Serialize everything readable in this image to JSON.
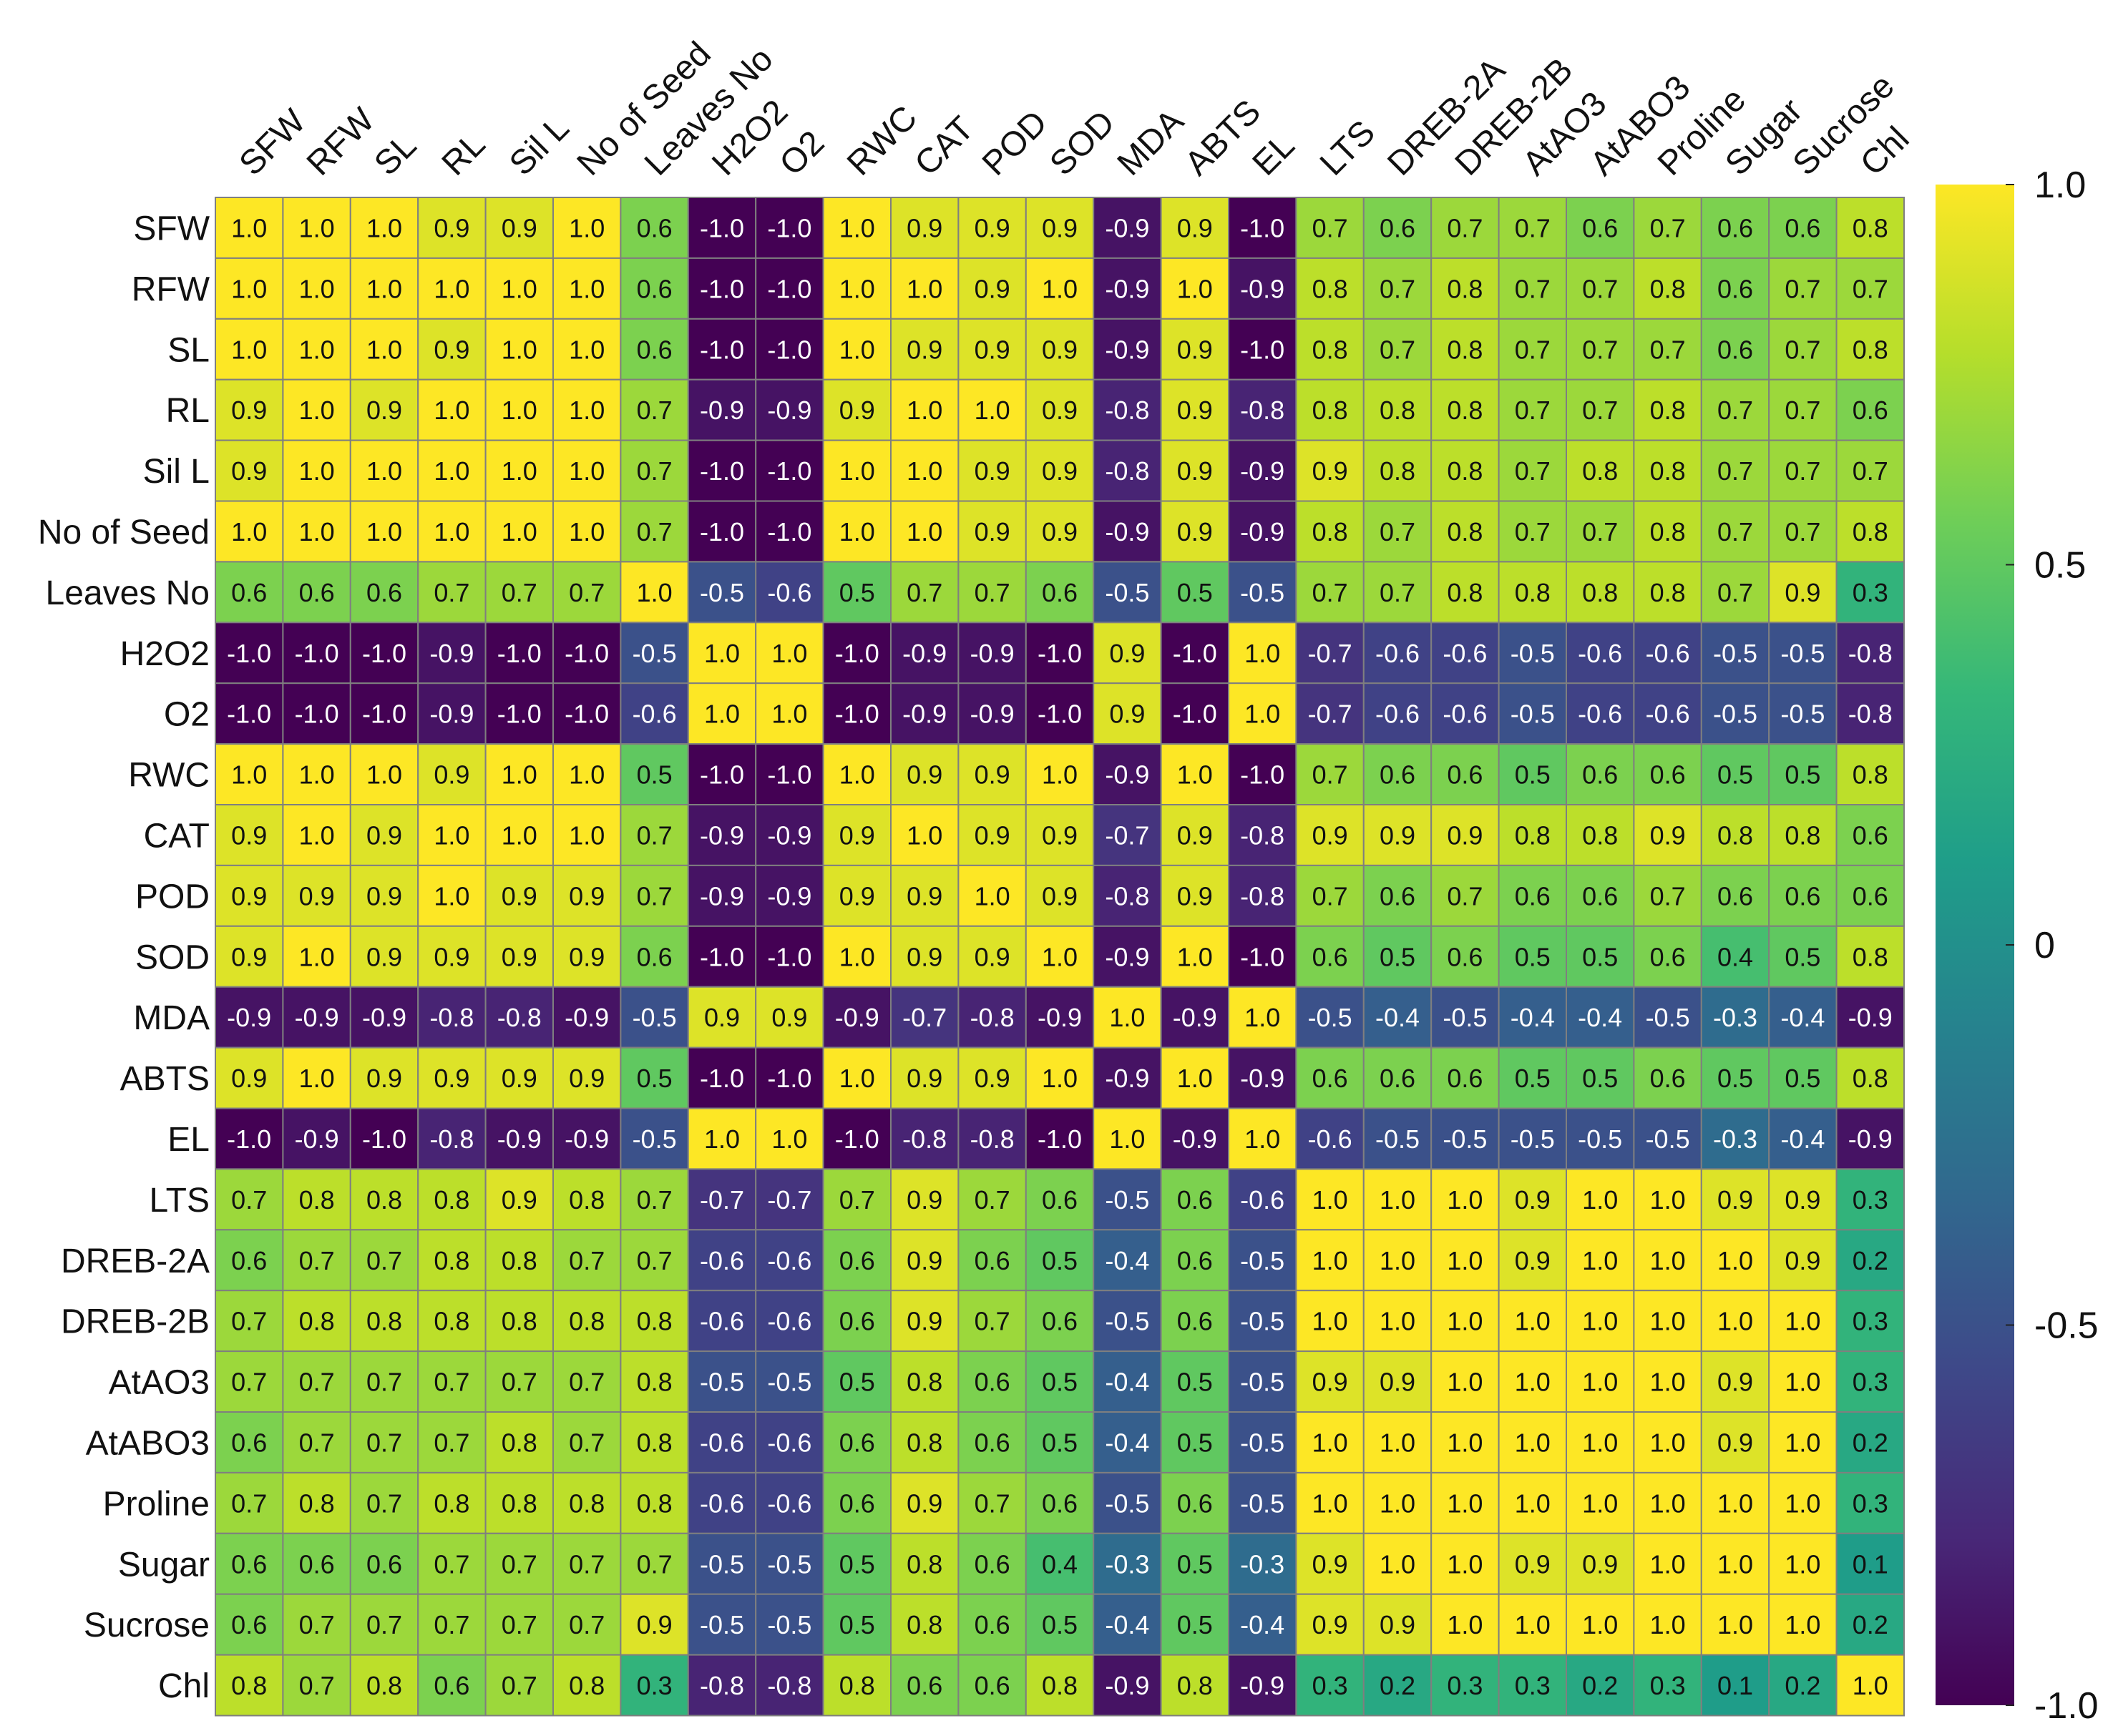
{
  "chart_data": {
    "type": "heatmap",
    "title": "",
    "labels": [
      "SFW",
      "RFW",
      "SL",
      "RL",
      "Sil L",
      "No of Seed",
      "Leaves No",
      "H2O2",
      "O2",
      "RWC",
      "CAT",
      "POD",
      "SOD",
      "MDA",
      "ABTS",
      "EL",
      "LTS",
      "DREB-2A",
      "DREB-2B",
      "AtAO3",
      "AtABO3",
      "Proline",
      "Sugar",
      "Sucrose",
      "Chl"
    ],
    "matrix": [
      [
        1.0,
        1.0,
        1.0,
        0.9,
        0.9,
        1.0,
        0.6,
        -1.0,
        -1.0,
        1.0,
        0.9,
        0.9,
        0.9,
        -0.9,
        0.9,
        -1.0,
        0.7,
        0.6,
        0.7,
        0.7,
        0.6,
        0.7,
        0.6,
        0.6,
        0.8
      ],
      [
        1.0,
        1.0,
        1.0,
        1.0,
        1.0,
        1.0,
        0.6,
        -1.0,
        -1.0,
        1.0,
        1.0,
        0.9,
        1.0,
        -0.9,
        1.0,
        -0.9,
        0.8,
        0.7,
        0.8,
        0.7,
        0.7,
        0.8,
        0.6,
        0.7,
        0.7
      ],
      [
        1.0,
        1.0,
        1.0,
        0.9,
        1.0,
        1.0,
        0.6,
        -1.0,
        -1.0,
        1.0,
        0.9,
        0.9,
        0.9,
        -0.9,
        0.9,
        -1.0,
        0.8,
        0.7,
        0.8,
        0.7,
        0.7,
        0.7,
        0.6,
        0.7,
        0.8
      ],
      [
        0.9,
        1.0,
        0.9,
        1.0,
        1.0,
        1.0,
        0.7,
        -0.9,
        -0.9,
        0.9,
        1.0,
        1.0,
        0.9,
        -0.8,
        0.9,
        -0.8,
        0.8,
        0.8,
        0.8,
        0.7,
        0.7,
        0.8,
        0.7,
        0.7,
        0.6
      ],
      [
        0.9,
        1.0,
        1.0,
        1.0,
        1.0,
        1.0,
        0.7,
        -1.0,
        -1.0,
        1.0,
        1.0,
        0.9,
        0.9,
        -0.8,
        0.9,
        -0.9,
        0.9,
        0.8,
        0.8,
        0.7,
        0.8,
        0.8,
        0.7,
        0.7,
        0.7
      ],
      [
        1.0,
        1.0,
        1.0,
        1.0,
        1.0,
        1.0,
        0.7,
        -1.0,
        -1.0,
        1.0,
        1.0,
        0.9,
        0.9,
        -0.9,
        0.9,
        -0.9,
        0.8,
        0.7,
        0.8,
        0.7,
        0.7,
        0.8,
        0.7,
        0.7,
        0.8
      ],
      [
        0.6,
        0.6,
        0.6,
        0.7,
        0.7,
        0.7,
        1.0,
        -0.5,
        -0.6,
        0.5,
        0.7,
        0.7,
        0.6,
        -0.5,
        0.5,
        -0.5,
        0.7,
        0.7,
        0.8,
        0.8,
        0.8,
        0.8,
        0.7,
        0.9,
        0.3
      ],
      [
        -1.0,
        -1.0,
        -1.0,
        -0.9,
        -1.0,
        -1.0,
        -0.5,
        1.0,
        1.0,
        -1.0,
        -0.9,
        -0.9,
        -1.0,
        0.9,
        -1.0,
        1.0,
        -0.7,
        -0.6,
        -0.6,
        -0.5,
        -0.6,
        -0.6,
        -0.5,
        -0.5,
        -0.8
      ],
      [
        -1.0,
        -1.0,
        -1.0,
        -0.9,
        -1.0,
        -1.0,
        -0.6,
        1.0,
        1.0,
        -1.0,
        -0.9,
        -0.9,
        -1.0,
        0.9,
        -1.0,
        1.0,
        -0.7,
        -0.6,
        -0.6,
        -0.5,
        -0.6,
        -0.6,
        -0.5,
        -0.5,
        -0.8
      ],
      [
        1.0,
        1.0,
        1.0,
        0.9,
        1.0,
        1.0,
        0.5,
        -1.0,
        -1.0,
        1.0,
        0.9,
        0.9,
        1.0,
        -0.9,
        1.0,
        -1.0,
        0.7,
        0.6,
        0.6,
        0.5,
        0.6,
        0.6,
        0.5,
        0.5,
        0.8
      ],
      [
        0.9,
        1.0,
        0.9,
        1.0,
        1.0,
        1.0,
        0.7,
        -0.9,
        -0.9,
        0.9,
        1.0,
        0.9,
        0.9,
        -0.7,
        0.9,
        -0.8,
        0.9,
        0.9,
        0.9,
        0.8,
        0.8,
        0.9,
        0.8,
        0.8,
        0.6
      ],
      [
        0.9,
        0.9,
        0.9,
        1.0,
        0.9,
        0.9,
        0.7,
        -0.9,
        -0.9,
        0.9,
        0.9,
        1.0,
        0.9,
        -0.8,
        0.9,
        -0.8,
        0.7,
        0.6,
        0.7,
        0.6,
        0.6,
        0.7,
        0.6,
        0.6,
        0.6
      ],
      [
        0.9,
        1.0,
        0.9,
        0.9,
        0.9,
        0.9,
        0.6,
        -1.0,
        -1.0,
        1.0,
        0.9,
        0.9,
        1.0,
        -0.9,
        1.0,
        -1.0,
        0.6,
        0.5,
        0.6,
        0.5,
        0.5,
        0.6,
        0.4,
        0.5,
        0.8
      ],
      [
        -0.9,
        -0.9,
        -0.9,
        -0.8,
        -0.8,
        -0.9,
        -0.5,
        0.9,
        0.9,
        -0.9,
        -0.7,
        -0.8,
        -0.9,
        1.0,
        -0.9,
        1.0,
        -0.5,
        -0.4,
        -0.5,
        -0.4,
        -0.4,
        -0.5,
        -0.3,
        -0.4,
        -0.9
      ],
      [
        0.9,
        1.0,
        0.9,
        0.9,
        0.9,
        0.9,
        0.5,
        -1.0,
        -1.0,
        1.0,
        0.9,
        0.9,
        1.0,
        -0.9,
        1.0,
        -0.9,
        0.6,
        0.6,
        0.6,
        0.5,
        0.5,
        0.6,
        0.5,
        0.5,
        0.8
      ],
      [
        -1.0,
        -0.9,
        -1.0,
        -0.8,
        -0.9,
        -0.9,
        -0.5,
        1.0,
        1.0,
        -1.0,
        -0.8,
        -0.8,
        -1.0,
        1.0,
        -0.9,
        1.0,
        -0.6,
        -0.5,
        -0.5,
        -0.5,
        -0.5,
        -0.5,
        -0.3,
        -0.4,
        -0.9
      ],
      [
        0.7,
        0.8,
        0.8,
        0.8,
        0.9,
        0.8,
        0.7,
        -0.7,
        -0.7,
        0.7,
        0.9,
        0.7,
        0.6,
        -0.5,
        0.6,
        -0.6,
        1.0,
        1.0,
        1.0,
        0.9,
        1.0,
        1.0,
        0.9,
        0.9,
        0.3
      ],
      [
        0.6,
        0.7,
        0.7,
        0.8,
        0.8,
        0.7,
        0.7,
        -0.6,
        -0.6,
        0.6,
        0.9,
        0.6,
        0.5,
        -0.4,
        0.6,
        -0.5,
        1.0,
        1.0,
        1.0,
        0.9,
        1.0,
        1.0,
        1.0,
        0.9,
        0.2
      ],
      [
        0.7,
        0.8,
        0.8,
        0.8,
        0.8,
        0.8,
        0.8,
        -0.6,
        -0.6,
        0.6,
        0.9,
        0.7,
        0.6,
        -0.5,
        0.6,
        -0.5,
        1.0,
        1.0,
        1.0,
        1.0,
        1.0,
        1.0,
        1.0,
        1.0,
        0.3
      ],
      [
        0.7,
        0.7,
        0.7,
        0.7,
        0.7,
        0.7,
        0.8,
        -0.5,
        -0.5,
        0.5,
        0.8,
        0.6,
        0.5,
        -0.4,
        0.5,
        -0.5,
        0.9,
        0.9,
        1.0,
        1.0,
        1.0,
        1.0,
        0.9,
        1.0,
        0.3
      ],
      [
        0.6,
        0.7,
        0.7,
        0.7,
        0.8,
        0.7,
        0.8,
        -0.6,
        -0.6,
        0.6,
        0.8,
        0.6,
        0.5,
        -0.4,
        0.5,
        -0.5,
        1.0,
        1.0,
        1.0,
        1.0,
        1.0,
        1.0,
        0.9,
        1.0,
        0.2
      ],
      [
        0.7,
        0.8,
        0.7,
        0.8,
        0.8,
        0.8,
        0.8,
        -0.6,
        -0.6,
        0.6,
        0.9,
        0.7,
        0.6,
        -0.5,
        0.6,
        -0.5,
        1.0,
        1.0,
        1.0,
        1.0,
        1.0,
        1.0,
        1.0,
        1.0,
        0.3
      ],
      [
        0.6,
        0.6,
        0.6,
        0.7,
        0.7,
        0.7,
        0.7,
        -0.5,
        -0.5,
        0.5,
        0.8,
        0.6,
        0.4,
        -0.3,
        0.5,
        -0.3,
        0.9,
        1.0,
        1.0,
        0.9,
        0.9,
        1.0,
        1.0,
        1.0,
        0.1
      ],
      [
        0.6,
        0.7,
        0.7,
        0.7,
        0.7,
        0.7,
        0.9,
        -0.5,
        -0.5,
        0.5,
        0.8,
        0.6,
        0.5,
        -0.4,
        0.5,
        -0.4,
        0.9,
        0.9,
        1.0,
        1.0,
        1.0,
        1.0,
        1.0,
        1.0,
        0.2
      ],
      [
        0.8,
        0.7,
        0.8,
        0.6,
        0.7,
        0.8,
        0.3,
        -0.8,
        -0.8,
        0.8,
        0.6,
        0.6,
        0.8,
        -0.9,
        0.8,
        -0.9,
        0.3,
        0.2,
        0.3,
        0.3,
        0.2,
        0.3,
        0.1,
        0.2,
        1.0
      ]
    ],
    "value_range": [
      -1.0,
      1.0
    ],
    "colormap": "viridis",
    "colormap_stops": [
      "#440154",
      "#482878",
      "#3e4989",
      "#31688e",
      "#26828e",
      "#1f9e89",
      "#35b779",
      "#6ece58",
      "#b5de2b",
      "#fde725"
    ],
    "colorbar": {
      "ticks": [
        1.0,
        0.5,
        0,
        -0.5,
        -1.0
      ],
      "tick_labels": [
        "1.0",
        "0.5",
        "0",
        "-0.5",
        "-1.0"
      ]
    },
    "xlabel": "",
    "ylabel": "",
    "grid_color": "#7f7f7f"
  }
}
